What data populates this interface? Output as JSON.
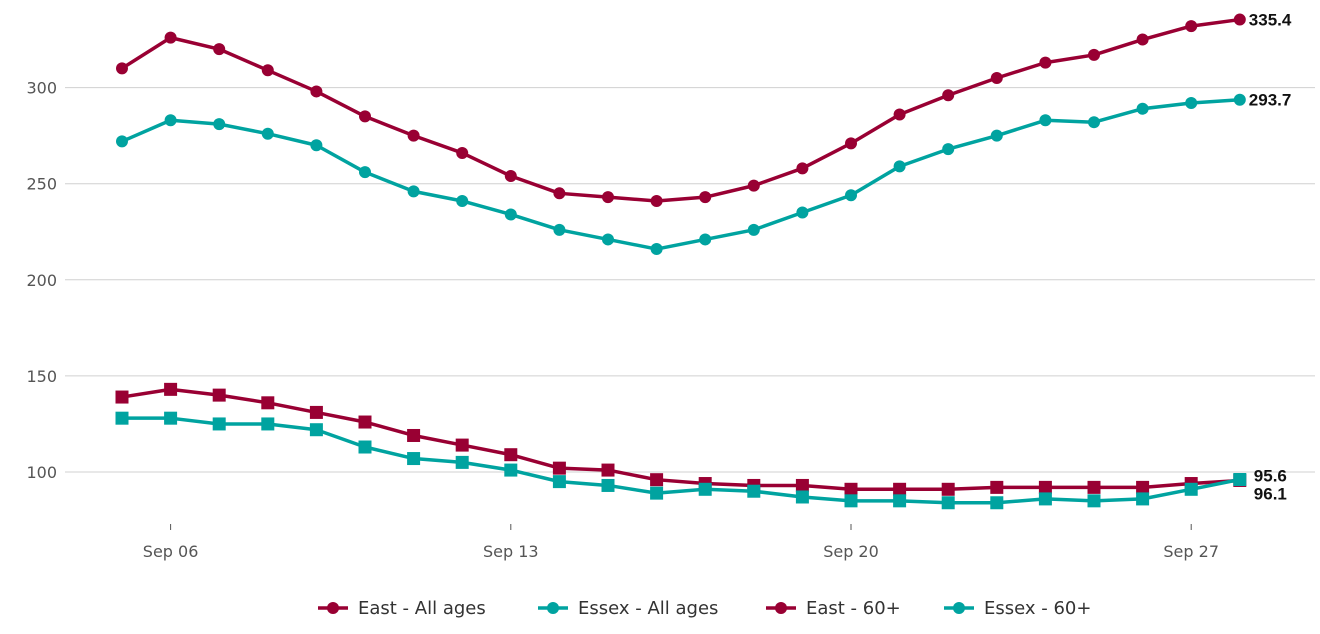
{
  "chart_data": {
    "type": "line",
    "title": "",
    "xlabel": "",
    "ylabel": "",
    "ylim": [
      70,
      336
    ],
    "grid": "horizontal",
    "legend_position": "bottom",
    "x": [
      "Sep 05",
      "Sep 06",
      "Sep 07",
      "Sep 08",
      "Sep 09",
      "Sep 10",
      "Sep 11",
      "Sep 12",
      "Sep 13",
      "Sep 14",
      "Sep 15",
      "Sep 16",
      "Sep 17",
      "Sep 18",
      "Sep 19",
      "Sep 20",
      "Sep 21",
      "Sep 22",
      "Sep 23",
      "Sep 24",
      "Sep 25",
      "Sep 26",
      "Sep 27",
      "Sep 28"
    ],
    "x_ticks": [
      "Sep 06",
      "Sep 13",
      "Sep 20",
      "Sep 27"
    ],
    "y_ticks": [
      100,
      150,
      200,
      250,
      300
    ],
    "series": [
      {
        "name": "East - All ages",
        "color": "#990033",
        "marker": "circle",
        "values": [
          310,
          326,
          320,
          309,
          298,
          285,
          275,
          266,
          254,
          245,
          243,
          241,
          243,
          249,
          258,
          271,
          286,
          296,
          305,
          313,
          317,
          325,
          332,
          335.4
        ],
        "end_label": "335.4"
      },
      {
        "name": "Essex - All ages",
        "color": "#00a3a0",
        "marker": "circle",
        "values": [
          272,
          283,
          281,
          276,
          270,
          256,
          246,
          241,
          234,
          226,
          221,
          216,
          221,
          226,
          235,
          244,
          259,
          268,
          275,
          283,
          282,
          289,
          292,
          293.7
        ],
        "end_label": "293.7"
      },
      {
        "name": "East - 60+",
        "color": "#990033",
        "marker": "square",
        "values": [
          139,
          143,
          140,
          136,
          131,
          126,
          119,
          114,
          109,
          102,
          101,
          96,
          94,
          93,
          93,
          91,
          91,
          91,
          92,
          92,
          92,
          92,
          94,
          95.6
        ],
        "end_label": "95.6"
      },
      {
        "name": "Essex - 60+",
        "color": "#00a3a0",
        "marker": "square",
        "values": [
          128,
          128,
          125,
          125,
          122,
          113,
          107,
          105,
          101,
          95,
          93,
          89,
          91,
          90,
          87,
          85,
          85,
          84,
          84,
          86,
          85,
          86,
          91,
          96.1
        ],
        "end_label": "96.1"
      }
    ]
  }
}
